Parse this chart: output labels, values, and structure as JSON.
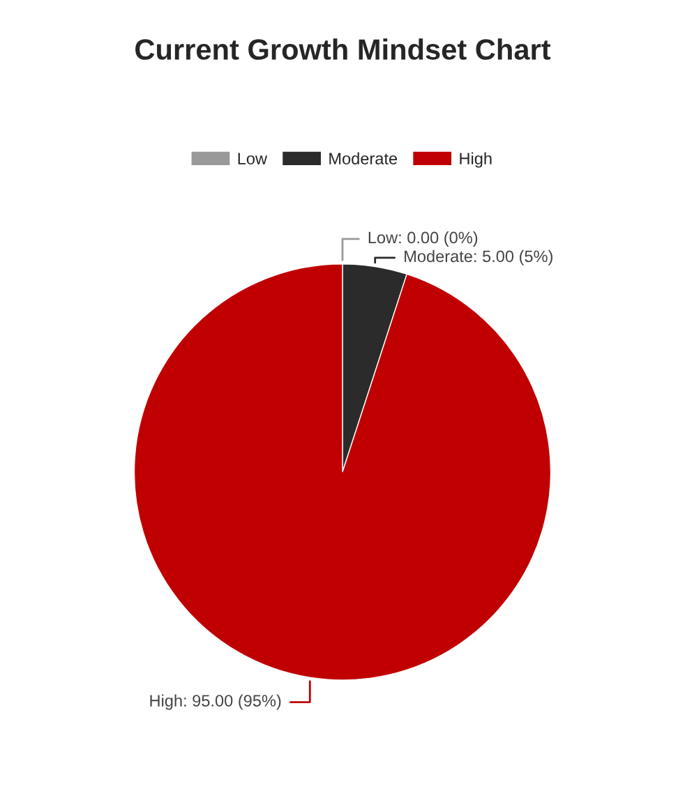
{
  "chart_data": {
    "type": "pie",
    "title": "Current Growth Mindset Chart",
    "categories": [
      "Low",
      "Moderate",
      "High"
    ],
    "values": [
      0,
      5,
      95
    ],
    "colors": [
      "#999999",
      "#2b2b2b",
      "#c00000"
    ],
    "value_labels": [
      "Low: 0.00 (0%)",
      "Moderate: 5.00 (5%)",
      "High: 95.00 (95%)"
    ],
    "legend": "top"
  }
}
